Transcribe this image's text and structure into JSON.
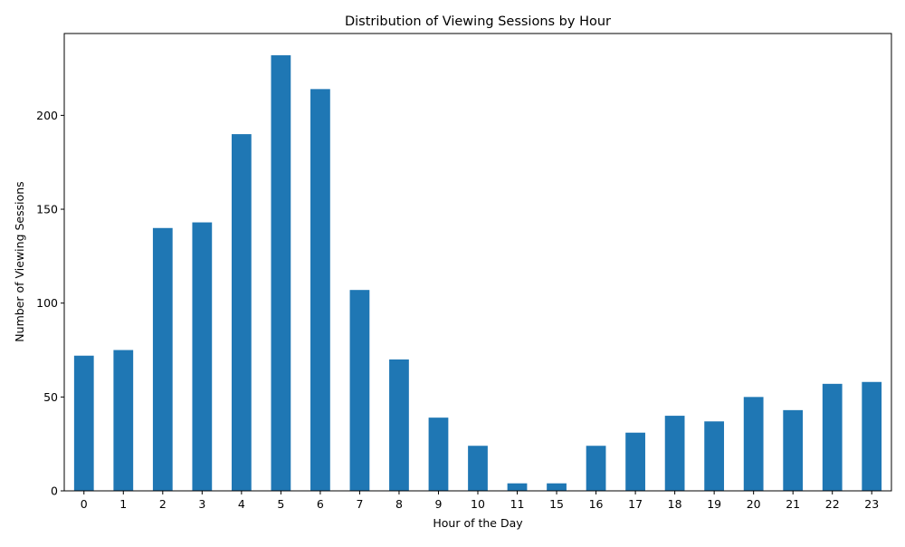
{
  "chart_data": {
    "type": "bar",
    "title": "Distribution of Viewing Sessions by Hour",
    "xlabel": "Hour of the Day",
    "ylabel": "Number of Viewing Sessions",
    "categories": [
      "0",
      "1",
      "2",
      "3",
      "4",
      "5",
      "6",
      "7",
      "8",
      "9",
      "10",
      "11",
      "15",
      "16",
      "17",
      "18",
      "19",
      "20",
      "21",
      "22",
      "23"
    ],
    "values": [
      72,
      75,
      140,
      143,
      190,
      232,
      214,
      107,
      70,
      39,
      24,
      4,
      4,
      24,
      31,
      40,
      37,
      50,
      43,
      57,
      58
    ],
    "ylim": [
      0,
      243.6
    ],
    "yticks": [
      0,
      50,
      100,
      150,
      200
    ],
    "grid": false,
    "colors": {
      "bar": "#1f77b4"
    }
  }
}
